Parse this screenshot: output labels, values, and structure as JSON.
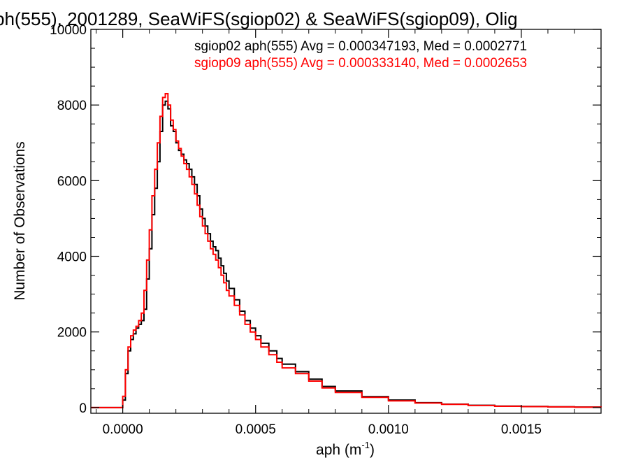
{
  "chart_data": {
    "type": "line",
    "title": "ph(555), 2001289, SeaWiFS(sgiop02) & SeaWiFS(sgiop09), Olig",
    "xlabel": "aph (m",
    "xlabel_exponent": "-1",
    "xlabel_suffix": ")",
    "ylabel": "Number of Observations",
    "xlim": [
      -0.00012,
      0.0018
    ],
    "ylim": [
      -150,
      10000
    ],
    "xticks": [
      0.0,
      0.0005,
      0.001,
      0.0015
    ],
    "xtick_labels": [
      "0.0000",
      "0.0005",
      "0.0010",
      "0.0015"
    ],
    "yticks": [
      0,
      2000,
      4000,
      6000,
      8000,
      10000
    ],
    "ytick_labels": [
      "0",
      "2000",
      "4000",
      "6000",
      "8000",
      "10000"
    ],
    "grid": false,
    "legend_position": "top-right",
    "step": true,
    "series": [
      {
        "name": "sgiop02 aph(555) Avg = 0.000347193, Med = 0.0002771",
        "color": "#000000",
        "x": [
          -0.00012,
          -5e-05,
          -1e-05,
          0.0,
          1e-05,
          2e-05,
          3e-05,
          4e-05,
          5e-05,
          6e-05,
          7e-05,
          8e-05,
          9e-05,
          0.0001,
          0.00011,
          0.00012,
          0.00013,
          0.00014,
          0.00015,
          0.00016,
          0.00017,
          0.00018,
          0.00019,
          0.0002,
          0.00021,
          0.00022,
          0.00023,
          0.00024,
          0.00025,
          0.00026,
          0.00027,
          0.00028,
          0.00029,
          0.0003,
          0.00031,
          0.00032,
          0.00033,
          0.00034,
          0.00035,
          0.00036,
          0.00037,
          0.00038,
          0.00039,
          0.0004,
          0.00042,
          0.00044,
          0.00046,
          0.00048,
          0.0005,
          0.00052,
          0.00055,
          0.00058,
          0.0006,
          0.00065,
          0.0007,
          0.00075,
          0.0008,
          0.0009,
          0.001,
          0.0011,
          0.0012,
          0.0013,
          0.0014,
          0.0015,
          0.0016,
          0.0017,
          0.0018
        ],
        "y": [
          0,
          0,
          0,
          200,
          900,
          1500,
          1800,
          1950,
          2100,
          2200,
          2300,
          2600,
          3400,
          4200,
          5100,
          5800,
          6500,
          7300,
          8000,
          8100,
          7900,
          7450,
          7300,
          7000,
          6800,
          6700,
          6550,
          6450,
          6300,
          6100,
          5900,
          5600,
          5250,
          5000,
          4800,
          4600,
          4400,
          4250,
          4150,
          3950,
          3750,
          3550,
          3350,
          3150,
          2850,
          2550,
          2300,
          2100,
          1900,
          1700,
          1500,
          1300,
          1150,
          950,
          750,
          560,
          440,
          290,
          200,
          130,
          90,
          60,
          40,
          30,
          20,
          15,
          10
        ]
      },
      {
        "name": "sgiop09 aph(555) Avg = 0.000333140, Med = 0.0002653",
        "color": "#ff0000",
        "x": [
          -0.00012,
          -5e-05,
          -1e-05,
          0.0,
          1e-05,
          2e-05,
          3e-05,
          4e-05,
          5e-05,
          6e-05,
          7e-05,
          8e-05,
          9e-05,
          0.0001,
          0.00011,
          0.00012,
          0.00013,
          0.00014,
          0.00015,
          0.00016,
          0.00017,
          0.00018,
          0.00019,
          0.0002,
          0.00021,
          0.00022,
          0.00023,
          0.00024,
          0.00025,
          0.00026,
          0.00027,
          0.00028,
          0.00029,
          0.0003,
          0.00031,
          0.00032,
          0.00033,
          0.00034,
          0.00035,
          0.00036,
          0.00037,
          0.00038,
          0.00039,
          0.0004,
          0.00042,
          0.00044,
          0.00046,
          0.00048,
          0.0005,
          0.00052,
          0.00055,
          0.00058,
          0.0006,
          0.00065,
          0.0007,
          0.00075,
          0.0008,
          0.0009,
          0.001,
          0.0011,
          0.0012,
          0.0013,
          0.0014,
          0.0015,
          0.0016,
          0.0017,
          0.0018
        ],
        "y": [
          0,
          0,
          0,
          300,
          1000,
          1600,
          1900,
          2050,
          2150,
          2300,
          2500,
          3100,
          3900,
          4700,
          5600,
          6300,
          7000,
          7700,
          8200,
          8300,
          8000,
          7600,
          7350,
          7050,
          6850,
          6650,
          6450,
          6300,
          6100,
          5900,
          5650,
          5350,
          5050,
          4800,
          4600,
          4400,
          4200,
          4050,
          3900,
          3700,
          3500,
          3300,
          3100,
          2950,
          2700,
          2450,
          2200,
          2000,
          1800,
          1600,
          1400,
          1200,
          1050,
          900,
          700,
          520,
          400,
          270,
          180,
          120,
          85,
          55,
          35,
          25,
          18,
          12,
          8
        ]
      }
    ]
  }
}
